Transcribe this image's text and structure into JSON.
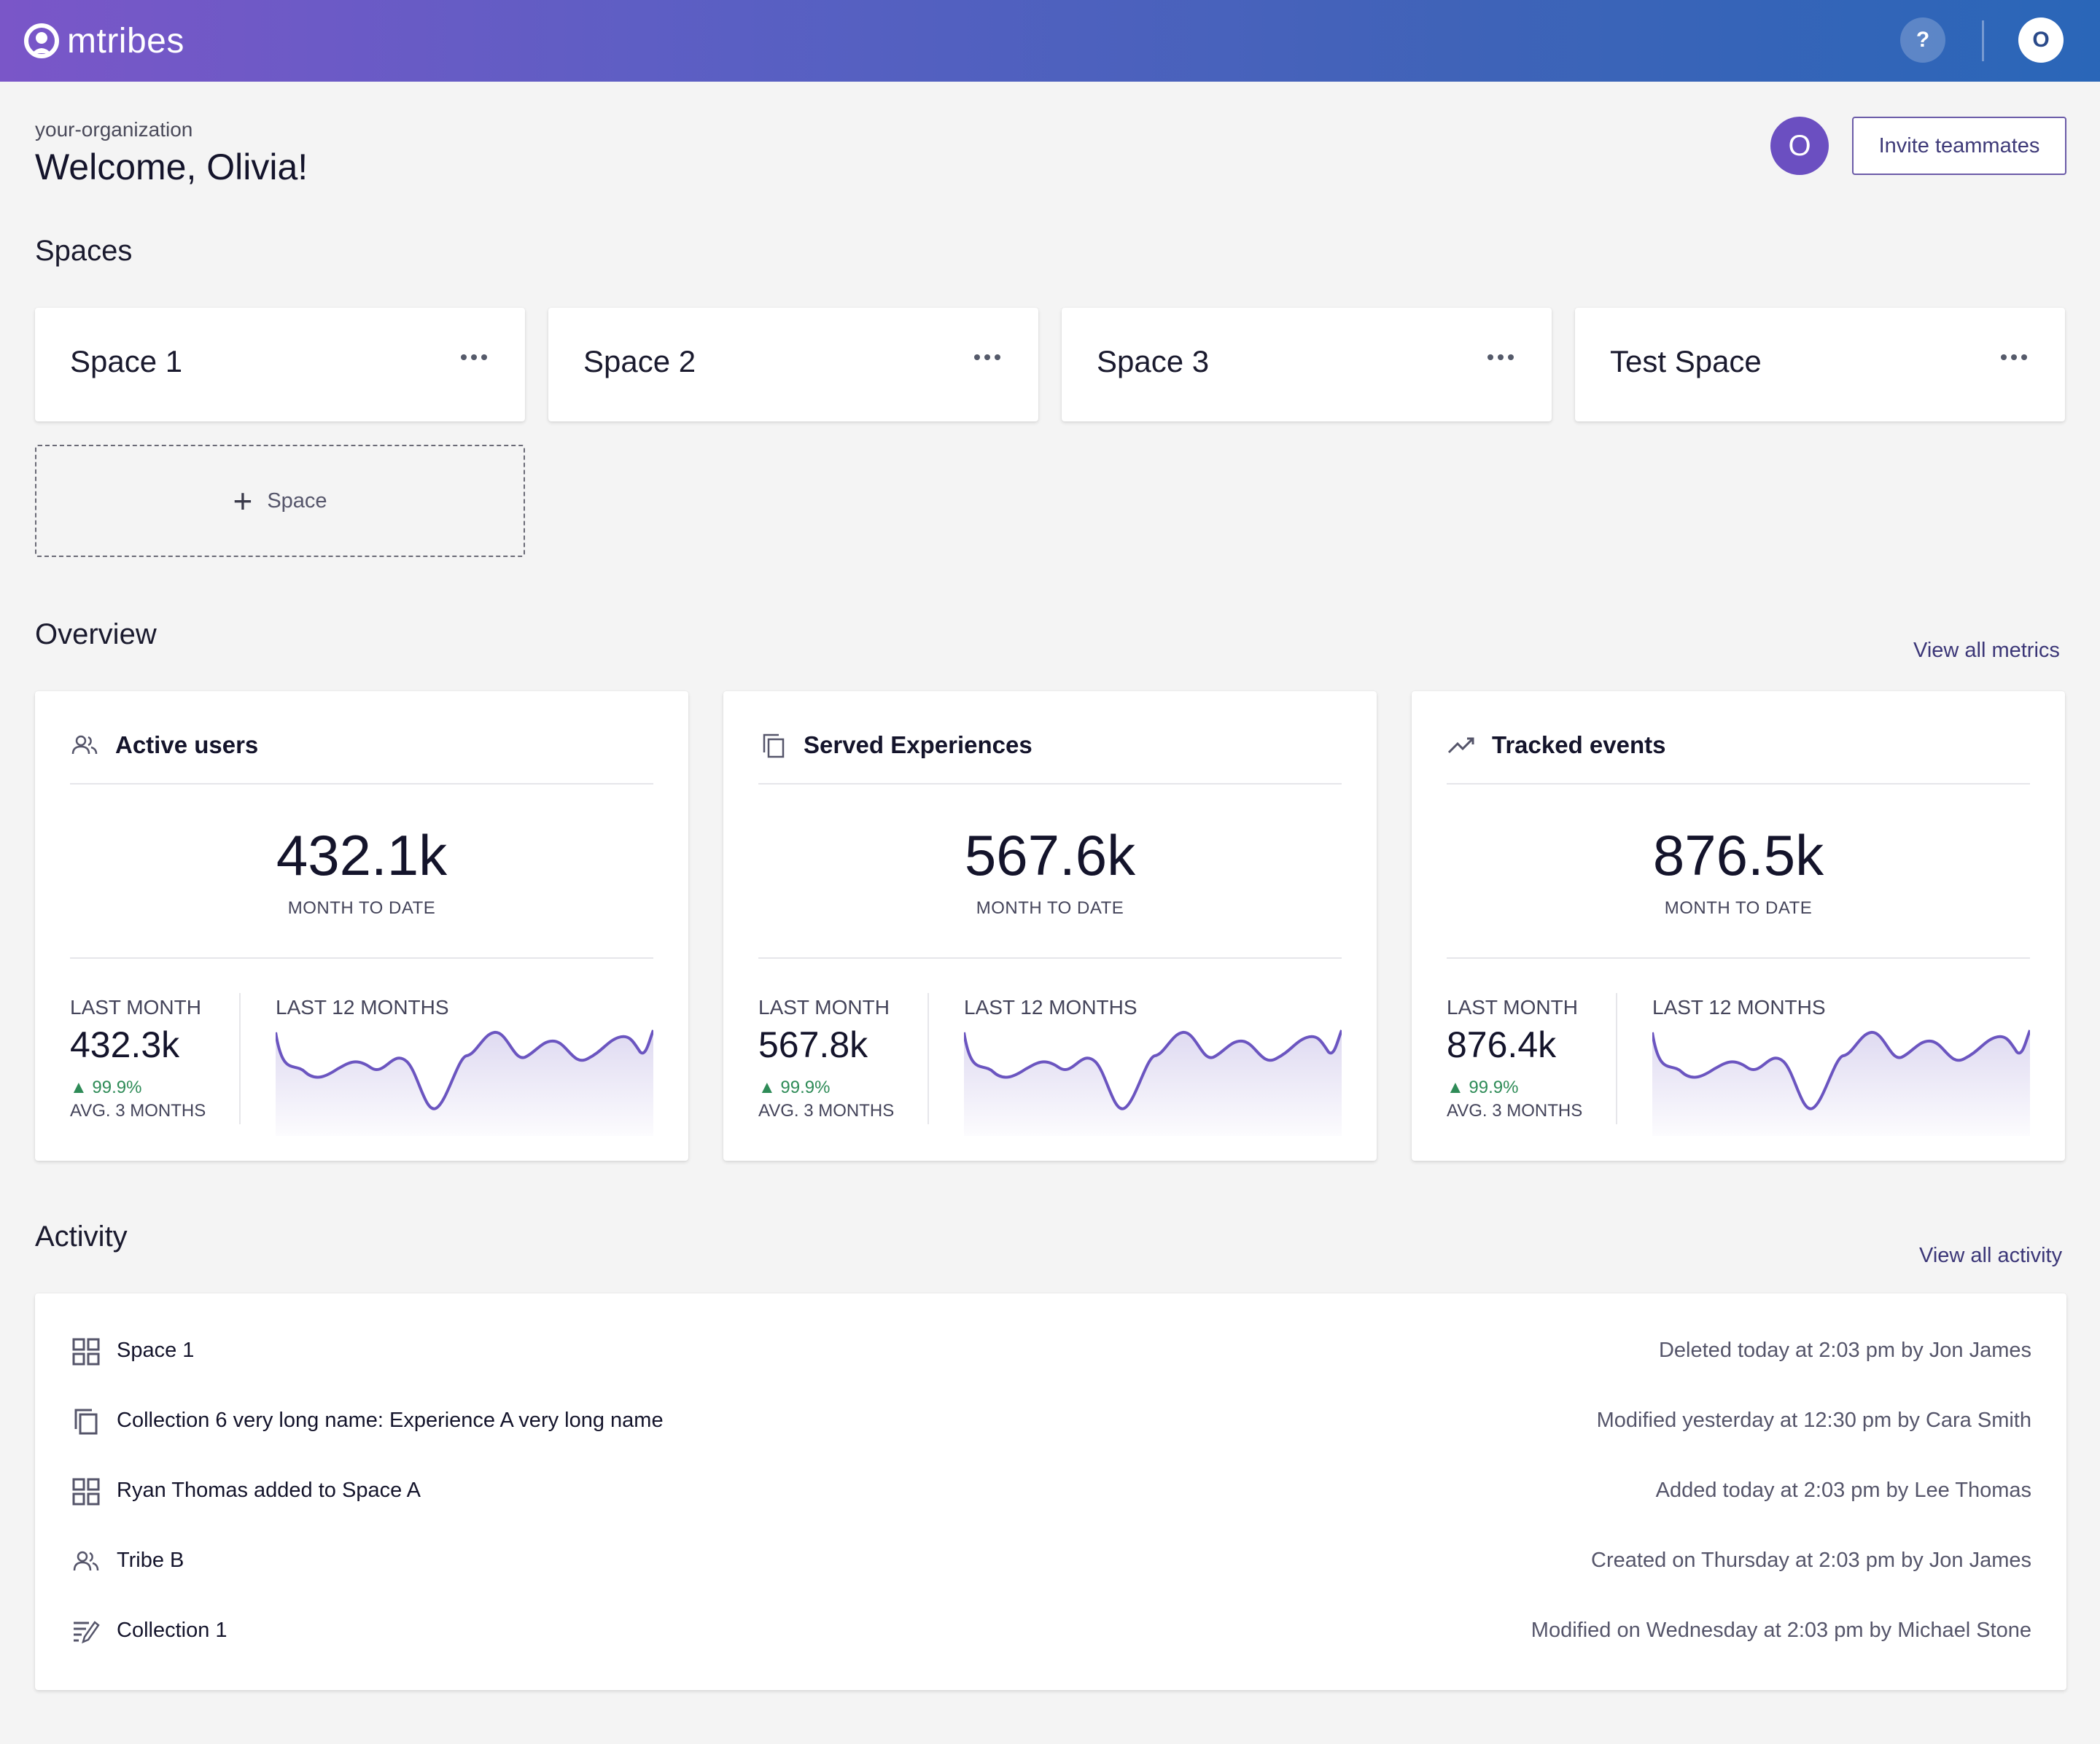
{
  "app": {
    "logo_text": "mtribes"
  },
  "header": {
    "help_label": "?",
    "user_initial": "O"
  },
  "org": {
    "name": "your-organization",
    "welcome": "Welcome, Olivia!",
    "avatar_initial": "O",
    "invite_label": "Invite teammates"
  },
  "spaces": {
    "title": "Spaces",
    "items": [
      {
        "name": "Space 1"
      },
      {
        "name": "Space 2"
      },
      {
        "name": "Space 3"
      },
      {
        "name": "Test Space"
      }
    ],
    "add_label": "Space"
  },
  "overview": {
    "title": "Overview",
    "view_all": "View all metrics",
    "accent_color": "#6b55c0",
    "metrics": [
      {
        "icon": "users-icon",
        "title": "Active users",
        "value": "432.1k",
        "value_label": "MONTH TO DATE",
        "last_month_label": "LAST MONTH",
        "last_month_value": "432.3k",
        "delta": "99.9%",
        "avg_label": "AVG. 3 MONTHS",
        "l12_label": "LAST 12 MONTHS"
      },
      {
        "icon": "copy-icon",
        "title": "Served Experiences",
        "value": "567.6k",
        "value_label": "MONTH TO DATE",
        "last_month_label": "LAST MONTH",
        "last_month_value": "567.8k",
        "delta": "99.9%",
        "avg_label": "AVG. 3 MONTHS",
        "l12_label": "LAST 12 MONTHS"
      },
      {
        "icon": "trend-icon",
        "title": "Tracked events",
        "value": "876.5k",
        "value_label": "MONTH TO DATE",
        "last_month_label": "LAST MONTH",
        "last_month_value": "876.4k",
        "delta": "99.9%",
        "avg_label": "AVG. 3 MONTHS",
        "l12_label": "LAST 12 MONTHS"
      }
    ]
  },
  "activity": {
    "title": "Activity",
    "view_all": "View all activity",
    "items": [
      {
        "icon": "grid-icon",
        "name": "Space 1",
        "meta": "Deleted today at 2:03 pm by Jon James"
      },
      {
        "icon": "copy-icon",
        "name": "Collection 6 very long name: Experience A very long name",
        "meta": "Modified yesterday at 12:30 pm by Cara Smith"
      },
      {
        "icon": "grid-icon",
        "name": "Ryan Thomas added to Space A",
        "meta": "Added today at 2:03 pm by Lee Thomas"
      },
      {
        "icon": "users-icon",
        "name": "Tribe B",
        "meta": "Created on Thursday at 2:03 pm by Jon James"
      },
      {
        "icon": "edit-list-icon",
        "name": "Collection 1",
        "meta": "Modified on Wednesday at 2:03 pm by Michael Stone"
      }
    ]
  }
}
